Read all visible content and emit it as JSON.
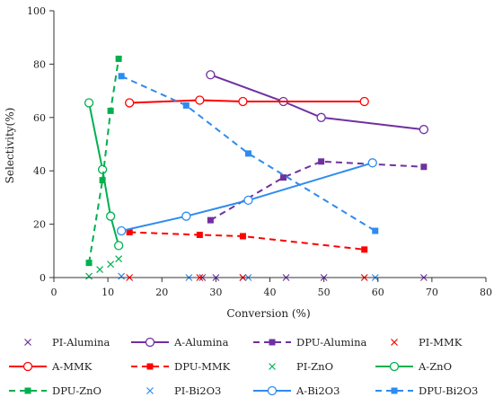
{
  "chart_data": {
    "type": "line",
    "title": "",
    "xlabel": "Conversion (%)",
    "ylabel": "Selectivity(%)",
    "xlim": [
      0,
      80
    ],
    "ylim": [
      0,
      100
    ],
    "xticks": [
      0,
      10,
      20,
      30,
      40,
      50,
      60,
      70,
      80
    ],
    "yticks": [
      0,
      20,
      40,
      60,
      80,
      100
    ],
    "grid": false,
    "legend_placement": "bottom",
    "series": [
      {
        "name": "PI-Alumina",
        "color": "#7030A0",
        "line": "none",
        "marker": "x",
        "points": [
          [
            27.5,
            0
          ],
          [
            30,
            0
          ],
          [
            35,
            0
          ],
          [
            43,
            0
          ],
          [
            50,
            0
          ],
          [
            68.5,
            0
          ]
        ]
      },
      {
        "name": "A-Alumina",
        "color": "#7030A0",
        "line": "solid",
        "marker": "circle-open",
        "points": [
          [
            29,
            76
          ],
          [
            42.5,
            66
          ],
          [
            49.5,
            60
          ],
          [
            68.5,
            55.5
          ]
        ]
      },
      {
        "name": "DPU-Alumina",
        "color": "#7030A0",
        "line": "dashed",
        "marker": "square",
        "points": [
          [
            29,
            21.5
          ],
          [
            42.5,
            37.5
          ],
          [
            49.5,
            43.5
          ],
          [
            68.5,
            41.5
          ]
        ]
      },
      {
        "name": "PI-MMK",
        "color": "#FF0000",
        "line": "none",
        "marker": "x",
        "points": [
          [
            14,
            0
          ],
          [
            27,
            0
          ],
          [
            35,
            0
          ],
          [
            57.5,
            0
          ]
        ]
      },
      {
        "name": "A-MMK",
        "color": "#FF0000",
        "line": "solid",
        "marker": "circle-open",
        "points": [
          [
            14,
            65.5
          ],
          [
            27,
            66.5
          ],
          [
            35,
            66
          ],
          [
            57.5,
            66
          ]
        ]
      },
      {
        "name": "DPU-MMK",
        "color": "#FF0000",
        "line": "dashed",
        "marker": "square",
        "points": [
          [
            14,
            17
          ],
          [
            27,
            16
          ],
          [
            35,
            15.5
          ],
          [
            57.5,
            10.5
          ]
        ]
      },
      {
        "name": "PI-ZnO",
        "color": "#00B050",
        "line": "none",
        "marker": "x",
        "points": [
          [
            6.5,
            0.5
          ],
          [
            8.5,
            3
          ],
          [
            10.5,
            5
          ],
          [
            12,
            7
          ]
        ]
      },
      {
        "name": "A-ZnO",
        "color": "#00B050",
        "line": "solid",
        "marker": "circle-open",
        "points": [
          [
            6.5,
            65.5
          ],
          [
            9,
            40.5
          ],
          [
            10.5,
            23
          ],
          [
            12,
            12
          ]
        ]
      },
      {
        "name": "DPU-ZnO",
        "color": "#00B050",
        "line": "dashed",
        "marker": "square",
        "points": [
          [
            6.5,
            5.5
          ],
          [
            9,
            36.5
          ],
          [
            10.5,
            62.5
          ],
          [
            12,
            82
          ]
        ]
      },
      {
        "name": "PI-Bi2O3",
        "color": "#2E8BEF",
        "line": "none",
        "marker": "x",
        "points": [
          [
            12.5,
            0.5
          ],
          [
            25,
            0
          ],
          [
            36,
            0
          ],
          [
            59.5,
            0
          ]
        ]
      },
      {
        "name": "A-Bi2O3",
        "color": "#2E8BEF",
        "line": "solid",
        "marker": "circle-open",
        "points": [
          [
            12.5,
            17.5
          ],
          [
            24.5,
            23
          ],
          [
            36,
            29
          ],
          [
            59,
            43
          ]
        ]
      },
      {
        "name": "DPU-Bi2O3",
        "color": "#2E8BEF",
        "line": "dashed",
        "marker": "square",
        "points": [
          [
            12.5,
            75.5
          ],
          [
            24.5,
            64.5
          ],
          [
            36,
            46.5
          ],
          [
            59.5,
            17.5
          ]
        ]
      }
    ]
  }
}
